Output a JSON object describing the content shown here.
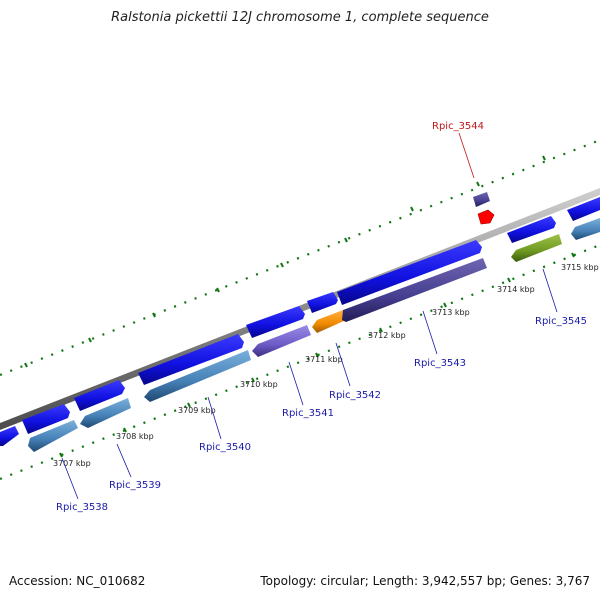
{
  "header": {
    "title": "Ralstonia pickettii 12J chromosome 1, complete sequence"
  },
  "footer": {
    "accession": "Accession: NC_010682",
    "summary": "Topology: circular; Length: 3,942,557 bp; Genes: 3,767"
  },
  "colors": {
    "backbone": "#8c8c8c",
    "ticks": "#117711",
    "cds_forward": "#1414e6",
    "cds_reverse": "#4a88bb",
    "highlight": "#ff0000"
  },
  "scale": {
    "labels": [
      "3707 kbp",
      "3708 kbp",
      "3709 kbp",
      "3710 kbp",
      "3711 kbp",
      "3712 kbp",
      "3713 kbp",
      "3714 kbp",
      "3715 kbp"
    ]
  },
  "genes": [
    {
      "id": "Rpic_3538",
      "highlight": false
    },
    {
      "id": "Rpic_3539",
      "highlight": false
    },
    {
      "id": "Rpic_3540",
      "highlight": false
    },
    {
      "id": "Rpic_3541",
      "highlight": false
    },
    {
      "id": "Rpic_3542",
      "highlight": false
    },
    {
      "id": "Rpic_3543",
      "highlight": false
    },
    {
      "id": "Rpic_3544",
      "highlight": true
    },
    {
      "id": "Rpic_3545",
      "highlight": false
    }
  ]
}
